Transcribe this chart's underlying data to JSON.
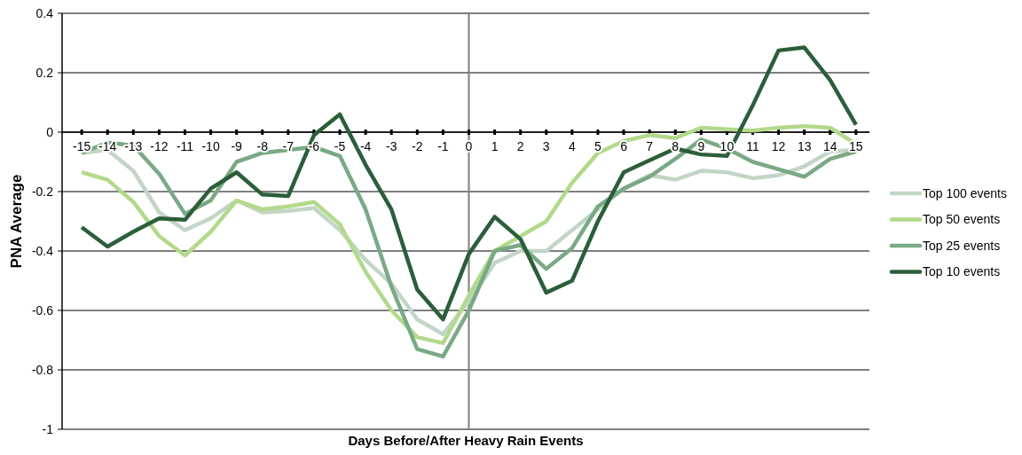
{
  "chart_data": {
    "type": "line",
    "xlabel": "Days Before/After Heavy Rain Events",
    "ylabel": "PNA Average",
    "x": [
      -15,
      -14,
      -13,
      -12,
      -11,
      -10,
      -9,
      -8,
      -7,
      -6,
      -5,
      -4,
      -3,
      -2,
      -1,
      0,
      1,
      2,
      3,
      4,
      5,
      6,
      7,
      8,
      9,
      10,
      11,
      12,
      13,
      14,
      15
    ],
    "xlim": [
      -15.76,
      15.52
    ],
    "xticks": [
      -15,
      -14,
      -13,
      -12,
      -11,
      -10,
      -9,
      -8,
      -7,
      -6,
      -5,
      -4,
      -3,
      -2,
      -1,
      0,
      1,
      2,
      3,
      4,
      5,
      6,
      7,
      8,
      9,
      10,
      11,
      12,
      13,
      14,
      15
    ],
    "ylim": [
      -1,
      0.4
    ],
    "yticks": [
      -1,
      -0.8,
      -0.6,
      -0.4,
      -0.2,
      0,
      0.2,
      0.4
    ],
    "grid": "y",
    "legend": "right",
    "marker": "none",
    "line_style": "solid",
    "ref_lines": [
      {
        "axis": "x",
        "value": 0,
        "color": "#7f7f7f"
      }
    ],
    "series": [
      {
        "name": "Top 100 events",
        "color": "#c3d5c6",
        "values": [
          -0.07,
          -0.06,
          -0.13,
          -0.27,
          -0.33,
          -0.29,
          -0.23,
          -0.27,
          -0.265,
          -0.255,
          -0.33,
          -0.43,
          -0.51,
          -0.63,
          -0.68,
          -0.57,
          -0.44,
          -0.4,
          -0.4,
          -0.33,
          -0.26,
          -0.19,
          -0.145,
          -0.16,
          -0.13,
          -0.135,
          -0.155,
          -0.145,
          -0.115,
          -0.065,
          -0.06
        ]
      },
      {
        "name": "Top 50 events",
        "color": "#b3d98c",
        "values": [
          -0.135,
          -0.16,
          -0.235,
          -0.35,
          -0.415,
          -0.335,
          -0.23,
          -0.26,
          -0.25,
          -0.235,
          -0.31,
          -0.47,
          -0.6,
          -0.69,
          -0.71,
          -0.55,
          -0.4,
          -0.35,
          -0.3,
          -0.17,
          -0.07,
          -0.03,
          -0.01,
          -0.02,
          0.015,
          0.01,
          0.005,
          0.015,
          0.02,
          0.015,
          -0.04
        ]
      },
      {
        "name": "Top 25 events",
        "color": "#7aa985",
        "values": [
          -0.07,
          -0.035,
          -0.045,
          -0.14,
          -0.275,
          -0.23,
          -0.1,
          -0.07,
          -0.06,
          -0.05,
          -0.08,
          -0.26,
          -0.52,
          -0.73,
          -0.755,
          -0.6,
          -0.4,
          -0.38,
          -0.46,
          -0.39,
          -0.25,
          -0.19,
          -0.15,
          -0.09,
          -0.025,
          -0.055,
          -0.1,
          -0.125,
          -0.15,
          -0.09,
          -0.065
        ]
      },
      {
        "name": "Top 10 events",
        "color": "#2b5e3a",
        "values": [
          -0.32,
          -0.385,
          -0.335,
          -0.29,
          -0.295,
          -0.19,
          -0.135,
          -0.21,
          -0.215,
          -0.01,
          0.06,
          -0.11,
          -0.26,
          -0.53,
          -0.63,
          -0.41,
          -0.285,
          -0.36,
          -0.54,
          -0.5,
          -0.3,
          -0.135,
          -0.095,
          -0.055,
          -0.075,
          -0.08,
          0.09,
          0.275,
          0.285,
          0.175,
          0.025
        ]
      }
    ]
  }
}
